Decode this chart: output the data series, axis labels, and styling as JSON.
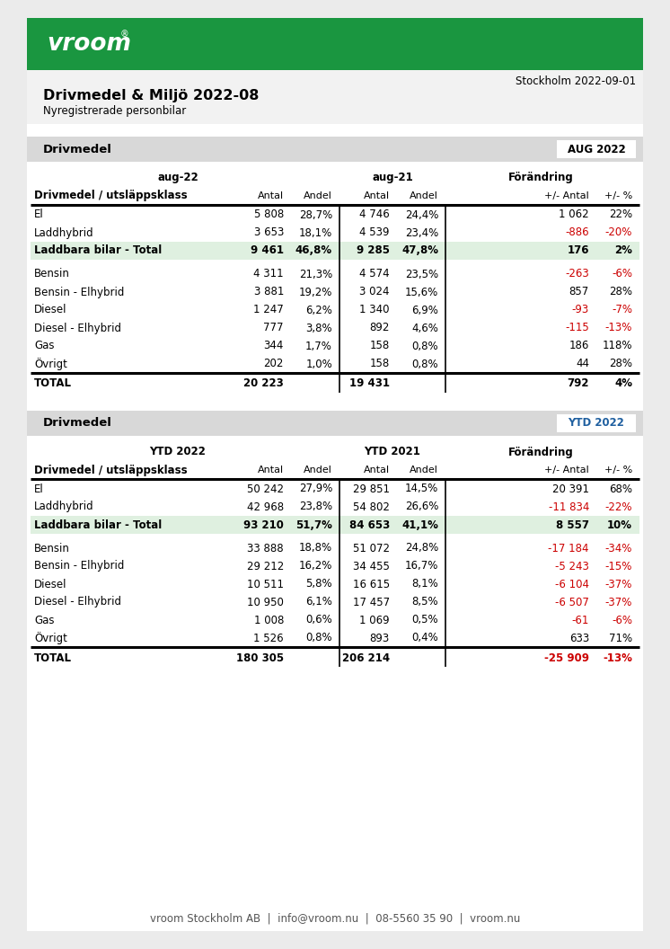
{
  "title": "Drivmedel & Miljö 2022-08",
  "subtitle": "Nyregistrerade personbilar",
  "date": "Stockholm 2022-09-01",
  "green_color": "#1a9640",
  "light_green_bg": "#dff0e0",
  "gray_header_bg": "#d8d8d8",
  "red_color": "#cc0000",
  "blue_color": "#2060a0",
  "page_bg": "#ebebeb",
  "content_bg": "#ffffff",
  "table1": {
    "header_label": "Drivmedel",
    "badge_text": "AUG 2022",
    "badge_color": "#000000",
    "col_headers": [
      "aug-22",
      "aug-21",
      "Förändring"
    ],
    "rows": [
      {
        "label": "El",
        "bold": false,
        "green_bg": false,
        "data": [
          "5 808",
          "28,7%",
          "4 746",
          "24,4%",
          "1 062",
          "22%"
        ],
        "red": [
          false,
          false,
          false,
          false,
          false,
          false
        ]
      },
      {
        "label": "Laddhybrid",
        "bold": false,
        "green_bg": false,
        "data": [
          "3 653",
          "18,1%",
          "4 539",
          "23,4%",
          "-886",
          "-20%"
        ],
        "red": [
          false,
          false,
          false,
          false,
          true,
          true
        ]
      },
      {
        "label": "Laddbara bilar - Total",
        "bold": true,
        "green_bg": true,
        "data": [
          "9 461",
          "46,8%",
          "9 285",
          "47,8%",
          "176",
          "2%"
        ],
        "red": [
          false,
          false,
          false,
          false,
          false,
          false
        ]
      },
      {
        "label": "Bensin",
        "bold": false,
        "green_bg": false,
        "data": [
          "4 311",
          "21,3%",
          "4 574",
          "23,5%",
          "-263",
          "-6%"
        ],
        "red": [
          false,
          false,
          false,
          false,
          true,
          true
        ]
      },
      {
        "label": "Bensin - Elhybrid",
        "bold": false,
        "green_bg": false,
        "data": [
          "3 881",
          "19,2%",
          "3 024",
          "15,6%",
          "857",
          "28%"
        ],
        "red": [
          false,
          false,
          false,
          false,
          false,
          false
        ]
      },
      {
        "label": "Diesel",
        "bold": false,
        "green_bg": false,
        "data": [
          "1 247",
          "6,2%",
          "1 340",
          "6,9%",
          "-93",
          "-7%"
        ],
        "red": [
          false,
          false,
          false,
          false,
          true,
          true
        ]
      },
      {
        "label": "Diesel - Elhybrid",
        "bold": false,
        "green_bg": false,
        "data": [
          "777",
          "3,8%",
          "892",
          "4,6%",
          "-115",
          "-13%"
        ],
        "red": [
          false,
          false,
          false,
          false,
          true,
          true
        ]
      },
      {
        "label": "Gas",
        "bold": false,
        "green_bg": false,
        "data": [
          "344",
          "1,7%",
          "158",
          "0,8%",
          "186",
          "118%"
        ],
        "red": [
          false,
          false,
          false,
          false,
          false,
          false
        ]
      },
      {
        "label": "Övrigt",
        "bold": false,
        "green_bg": false,
        "data": [
          "202",
          "1,0%",
          "158",
          "0,8%",
          "44",
          "28%"
        ],
        "red": [
          false,
          false,
          false,
          false,
          false,
          false
        ]
      }
    ],
    "total_row": {
      "label": "TOTAL",
      "data": [
        "20 223",
        "",
        "19 431",
        "",
        "792",
        "4%"
      ],
      "red": [
        false,
        false,
        false,
        false,
        false,
        false
      ]
    }
  },
  "table2": {
    "header_label": "Drivmedel",
    "badge_text": "YTD 2022",
    "badge_color": "#2060a0",
    "col_headers": [
      "YTD 2022",
      "YTD 2021",
      "Förändring"
    ],
    "rows": [
      {
        "label": "El",
        "bold": false,
        "green_bg": false,
        "data": [
          "50 242",
          "27,9%",
          "29 851",
          "14,5%",
          "20 391",
          "68%"
        ],
        "red": [
          false,
          false,
          false,
          false,
          false,
          false
        ]
      },
      {
        "label": "Laddhybrid",
        "bold": false,
        "green_bg": false,
        "data": [
          "42 968",
          "23,8%",
          "54 802",
          "26,6%",
          "-11 834",
          "-22%"
        ],
        "red": [
          false,
          false,
          false,
          false,
          true,
          true
        ]
      },
      {
        "label": "Laddbara bilar - Total",
        "bold": true,
        "green_bg": true,
        "data": [
          "93 210",
          "51,7%",
          "84 653",
          "41,1%",
          "8 557",
          "10%"
        ],
        "red": [
          false,
          false,
          false,
          false,
          false,
          false
        ]
      },
      {
        "label": "Bensin",
        "bold": false,
        "green_bg": false,
        "data": [
          "33 888",
          "18,8%",
          "51 072",
          "24,8%",
          "-17 184",
          "-34%"
        ],
        "red": [
          false,
          false,
          false,
          false,
          true,
          true
        ]
      },
      {
        "label": "Bensin - Elhybrid",
        "bold": false,
        "green_bg": false,
        "data": [
          "29 212",
          "16,2%",
          "34 455",
          "16,7%",
          "-5 243",
          "-15%"
        ],
        "red": [
          false,
          false,
          false,
          false,
          true,
          true
        ]
      },
      {
        "label": "Diesel",
        "bold": false,
        "green_bg": false,
        "data": [
          "10 511",
          "5,8%",
          "16 615",
          "8,1%",
          "-6 104",
          "-37%"
        ],
        "red": [
          false,
          false,
          false,
          false,
          true,
          true
        ]
      },
      {
        "label": "Diesel - Elhybrid",
        "bold": false,
        "green_bg": false,
        "data": [
          "10 950",
          "6,1%",
          "17 457",
          "8,5%",
          "-6 507",
          "-37%"
        ],
        "red": [
          false,
          false,
          false,
          false,
          true,
          true
        ]
      },
      {
        "label": "Gas",
        "bold": false,
        "green_bg": false,
        "data": [
          "1 008",
          "0,6%",
          "1 069",
          "0,5%",
          "-61",
          "-6%"
        ],
        "red": [
          false,
          false,
          false,
          false,
          true,
          true
        ]
      },
      {
        "label": "Övrigt",
        "bold": false,
        "green_bg": false,
        "data": [
          "1 526",
          "0,8%",
          "893",
          "0,4%",
          "633",
          "71%"
        ],
        "red": [
          false,
          false,
          false,
          false,
          false,
          false
        ]
      }
    ],
    "total_row": {
      "label": "TOTAL",
      "data": [
        "180 305",
        "",
        "206 214",
        "",
        "-25 909",
        "-13%"
      ],
      "red": [
        false,
        false,
        false,
        false,
        true,
        true
      ]
    }
  },
  "footer": "vroom Stockholm AB  |  info@vroom.nu  |  08-5560 35 90  |  vroom.nu"
}
